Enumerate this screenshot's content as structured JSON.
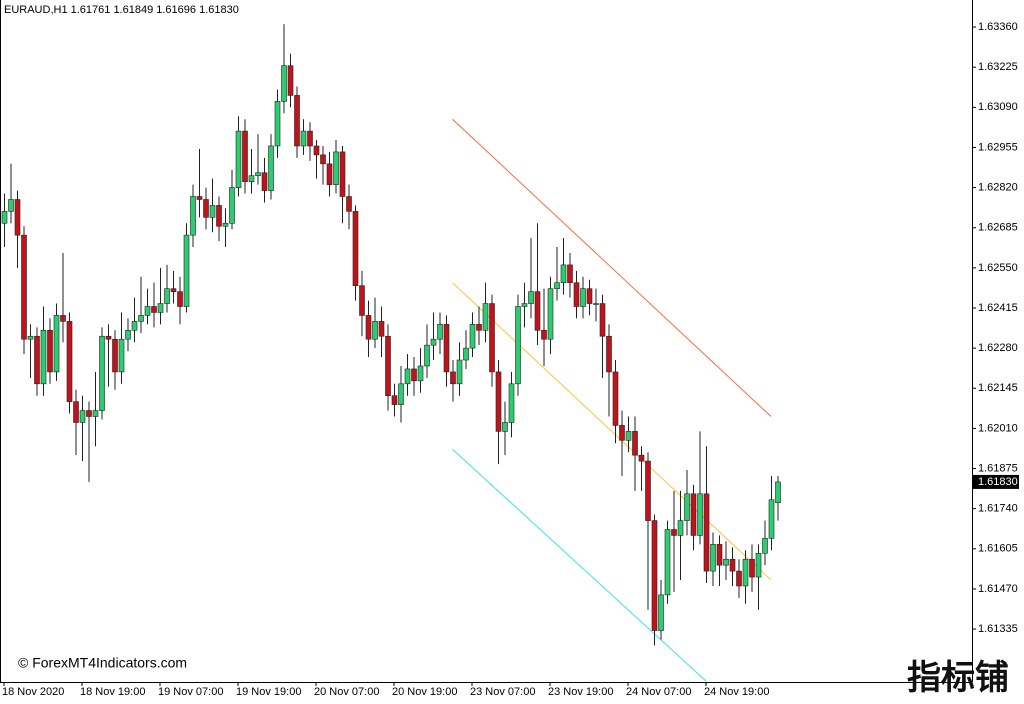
{
  "chart_data": {
    "type": "candlestick",
    "title": "EURAUD,H1  1.61761 1.61849 1.61696 1.61830",
    "watermark": "© ForexMT4Indicators.com",
    "logo": "指标铺",
    "bull_color": "#2ecc71",
    "bear_color": "#c0141c",
    "ylim": [
      1.61157,
      1.63451
    ],
    "yticks": [
      {
        "value": 1.6336,
        "label": "1.63360"
      },
      1.63225,
      {
        "value": 1.6309,
        "label": "1.63090"
      },
      1.62955,
      {
        "value": 1.6282,
        "label": "1.62820"
      },
      1.62685,
      {
        "value": 1.6255,
        "label": "1.62550"
      },
      1.62415,
      {
        "value": 1.6228,
        "label": "1.62280"
      },
      1.62145,
      {
        "value": 1.6201,
        "label": "1.62010"
      },
      1.61875,
      {
        "value": 1.6174,
        "label": "1.61740"
      },
      1.61605,
      {
        "value": 1.6147,
        "label": "1.61470"
      },
      1.61335
    ],
    "xticks": [
      {
        "value": 0,
        "label": "18 Nov 2020"
      },
      {
        "value": 12,
        "label": "18 Nov 19:00"
      },
      {
        "value": 24,
        "label": "19 Nov 07:00"
      },
      {
        "value": 36,
        "label": "19 Nov 19:00"
      },
      {
        "value": 48,
        "label": "20 Nov 07:00"
      },
      {
        "value": 60,
        "label": "20 Nov 19:00"
      },
      {
        "value": 72,
        "label": "23 Nov 07:00"
      },
      {
        "value": 84,
        "label": "23 Nov 19:00"
      },
      {
        "value": 96,
        "label": "24 Nov 07:00"
      },
      {
        "value": 108,
        "label": "24 Nov 19:00"
      }
    ],
    "last_price": {
      "value": 1.6183,
      "label": "1.61830"
    },
    "channels": [
      {
        "color": "#ff6a3d",
        "start": [
          69,
          1.6305
        ],
        "end": [
          118,
          1.6205
        ]
      },
      {
        "color": "#ffc23a",
        "start": [
          69,
          1.625
        ],
        "end": [
          118,
          1.615
        ]
      },
      {
        "color": "#3ee0f0",
        "start": [
          69,
          1.6194
        ],
        "end": [
          108,
          1.6116
        ]
      }
    ],
    "candles": [
      [
        1.627,
        1.628,
        1.6262,
        1.6274
      ],
      [
        1.6274,
        1.629,
        1.627,
        1.6278
      ],
      [
        1.6278,
        1.6281,
        1.6255,
        1.6266
      ],
      [
        1.6266,
        1.6269,
        1.6226,
        1.6231
      ],
      [
        1.6231,
        1.6236,
        1.6218,
        1.6232
      ],
      [
        1.6232,
        1.6235,
        1.6212,
        1.6216
      ],
      [
        1.6216,
        1.6242,
        1.6212,
        1.6234
      ],
      [
        1.6234,
        1.6238,
        1.6216,
        1.622
      ],
      [
        1.622,
        1.6243,
        1.6217,
        1.6239
      ],
      [
        1.6239,
        1.626,
        1.623,
        1.6237
      ],
      [
        1.6237,
        1.624,
        1.6206,
        1.621
      ],
      [
        1.621,
        1.6214,
        1.6192,
        1.6203
      ],
      [
        1.6203,
        1.6212,
        1.619,
        1.6207
      ],
      [
        1.6207,
        1.621,
        1.6183,
        1.6205
      ],
      [
        1.6205,
        1.622,
        1.6195,
        1.6207
      ],
      [
        1.6207,
        1.6235,
        1.6204,
        1.6232
      ],
      [
        1.6232,
        1.6236,
        1.6215,
        1.6231
      ],
      [
        1.6231,
        1.6234,
        1.6214,
        1.622
      ],
      [
        1.622,
        1.624,
        1.6216,
        1.6231
      ],
      [
        1.6231,
        1.6238,
        1.6227,
        1.6234
      ],
      [
        1.6234,
        1.6245,
        1.623,
        1.6237
      ],
      [
        1.6237,
        1.6252,
        1.6233,
        1.6239
      ],
      [
        1.6239,
        1.6248,
        1.6236,
        1.6242
      ],
      [
        1.6242,
        1.625,
        1.6235,
        1.624
      ],
      [
        1.624,
        1.6255,
        1.6236,
        1.6243
      ],
      [
        1.6243,
        1.6256,
        1.624,
        1.6248
      ],
      [
        1.6248,
        1.6254,
        1.6243,
        1.6247
      ],
      [
        1.6247,
        1.6252,
        1.6236,
        1.6242
      ],
      [
        1.6242,
        1.627,
        1.624,
        1.6266
      ],
      [
        1.6266,
        1.6283,
        1.6262,
        1.6279
      ],
      [
        1.6279,
        1.6295,
        1.6272,
        1.6278
      ],
      [
        1.6278,
        1.6282,
        1.6268,
        1.6272
      ],
      [
        1.6272,
        1.6285,
        1.6267,
        1.6276
      ],
      [
        1.6276,
        1.6279,
        1.6264,
        1.6269
      ],
      [
        1.6269,
        1.6275,
        1.6262,
        1.627
      ],
      [
        1.627,
        1.6288,
        1.6268,
        1.6282
      ],
      [
        1.6282,
        1.6306,
        1.6279,
        1.6301
      ],
      [
        1.6301,
        1.6305,
        1.628,
        1.6284
      ],
      [
        1.6284,
        1.6295,
        1.628,
        1.6286
      ],
      [
        1.6286,
        1.63,
        1.6283,
        1.6287
      ],
      [
        1.6287,
        1.6292,
        1.6277,
        1.6281
      ],
      [
        1.6281,
        1.63,
        1.6278,
        1.6296
      ],
      [
        1.6296,
        1.6315,
        1.6292,
        1.6311
      ],
      [
        1.6311,
        1.6337,
        1.6307,
        1.6323
      ],
      [
        1.6323,
        1.6327,
        1.6309,
        1.6313
      ],
      [
        1.6313,
        1.6316,
        1.6292,
        1.6296
      ],
      [
        1.6296,
        1.6305,
        1.6293,
        1.6301
      ],
      [
        1.6301,
        1.6304,
        1.6291,
        1.6296
      ],
      [
        1.6296,
        1.6298,
        1.6285,
        1.6293
      ],
      [
        1.6293,
        1.6296,
        1.6283,
        1.629
      ],
      [
        1.629,
        1.6294,
        1.6279,
        1.6283
      ],
      [
        1.6283,
        1.6298,
        1.628,
        1.6294
      ],
      [
        1.6294,
        1.6296,
        1.627,
        1.6279
      ],
      [
        1.6279,
        1.6283,
        1.6268,
        1.6274
      ],
      [
        1.6274,
        1.6276,
        1.6244,
        1.6249
      ],
      [
        1.6249,
        1.6254,
        1.6232,
        1.6239
      ],
      [
        1.6239,
        1.6244,
        1.6225,
        1.6231
      ],
      [
        1.6231,
        1.6245,
        1.6228,
        1.6237
      ],
      [
        1.6237,
        1.6242,
        1.6225,
        1.6232
      ],
      [
        1.6232,
        1.6236,
        1.6207,
        1.6212
      ],
      [
        1.6212,
        1.6216,
        1.6205,
        1.6209
      ],
      [
        1.6209,
        1.6222,
        1.6203,
        1.6216
      ],
      [
        1.6216,
        1.6226,
        1.6212,
        1.6221
      ],
      [
        1.6221,
        1.6225,
        1.6212,
        1.6217
      ],
      [
        1.6217,
        1.6228,
        1.6213,
        1.6222
      ],
      [
        1.6222,
        1.6236,
        1.6218,
        1.6229
      ],
      [
        1.6229,
        1.624,
        1.6224,
        1.6231
      ],
      [
        1.6231,
        1.624,
        1.6226,
        1.6236
      ],
      [
        1.6236,
        1.6239,
        1.6215,
        1.622
      ],
      [
        1.622,
        1.6224,
        1.621,
        1.6216
      ],
      [
        1.6216,
        1.623,
        1.6212,
        1.6224
      ],
      [
        1.6224,
        1.6234,
        1.6221,
        1.6228
      ],
      [
        1.6228,
        1.624,
        1.6225,
        1.6236
      ],
      [
        1.6236,
        1.6242,
        1.6229,
        1.6234
      ],
      [
        1.6234,
        1.625,
        1.623,
        1.6243
      ],
      [
        1.6243,
        1.6246,
        1.6215,
        1.622
      ],
      [
        1.622,
        1.6224,
        1.6189,
        1.62
      ],
      [
        1.62,
        1.621,
        1.6192,
        1.6203
      ],
      [
        1.6203,
        1.622,
        1.6198,
        1.6216
      ],
      [
        1.6216,
        1.6246,
        1.6212,
        1.6242
      ],
      [
        1.6242,
        1.625,
        1.6235,
        1.6243
      ],
      [
        1.6243,
        1.6265,
        1.6238,
        1.6247
      ],
      [
        1.6247,
        1.627,
        1.6229,
        1.6234
      ],
      [
        1.6234,
        1.6248,
        1.6222,
        1.6231
      ],
      [
        1.6231,
        1.6252,
        1.6226,
        1.6248
      ],
      [
        1.6248,
        1.6262,
        1.6244,
        1.625
      ],
      [
        1.625,
        1.6265,
        1.6246,
        1.6256
      ],
      [
        1.6256,
        1.626,
        1.6245,
        1.625
      ],
      [
        1.625,
        1.6254,
        1.6238,
        1.6242
      ],
      [
        1.6242,
        1.6252,
        1.6238,
        1.6248
      ],
      [
        1.6248,
        1.6251,
        1.6239,
        1.6243
      ],
      [
        1.6243,
        1.6248,
        1.6237,
        1.6243
      ],
      [
        1.6243,
        1.6246,
        1.6218,
        1.6232
      ],
      [
        1.6232,
        1.6236,
        1.6205,
        1.622
      ],
      [
        1.622,
        1.6224,
        1.6196,
        1.6202
      ],
      [
        1.6202,
        1.6207,
        1.6185,
        1.6197
      ],
      [
        1.6197,
        1.6205,
        1.6193,
        1.62
      ],
      [
        1.62,
        1.6205,
        1.618,
        1.6192
      ],
      [
        1.6192,
        1.6195,
        1.618,
        1.619
      ],
      [
        1.619,
        1.6193,
        1.614,
        1.617
      ],
      [
        1.617,
        1.6172,
        1.6128,
        1.6133
      ],
      [
        1.6133,
        1.615,
        1.613,
        1.6145
      ],
      [
        1.6145,
        1.617,
        1.6142,
        1.6167
      ],
      [
        1.6167,
        1.618,
        1.6146,
        1.6165
      ],
      [
        1.6165,
        1.618,
        1.615,
        1.617
      ],
      [
        1.617,
        1.6187,
        1.6165,
        1.6179
      ],
      [
        1.6179,
        1.6182,
        1.616,
        1.6165
      ],
      [
        1.6165,
        1.62,
        1.6162,
        1.6179
      ],
      [
        1.6179,
        1.6195,
        1.6149,
        1.6153
      ],
      [
        1.6153,
        1.6166,
        1.6148,
        1.6162
      ],
      [
        1.6162,
        1.6165,
        1.6148,
        1.6155
      ],
      [
        1.6155,
        1.6163,
        1.615,
        1.6157
      ],
      [
        1.6157,
        1.6161,
        1.6148,
        1.6153
      ],
      [
        1.6153,
        1.6157,
        1.6144,
        1.6148
      ],
      [
        1.6148,
        1.616,
        1.6142,
        1.6157
      ],
      [
        1.6157,
        1.6162,
        1.6146,
        1.6151
      ],
      [
        1.6151,
        1.6162,
        1.614,
        1.6159
      ],
      [
        1.6159,
        1.617,
        1.6155,
        1.6164
      ],
      [
        1.6164,
        1.6185,
        1.616,
        1.6177
      ],
      [
        1.6176,
        1.6185,
        1.617,
        1.6183
      ]
    ]
  }
}
